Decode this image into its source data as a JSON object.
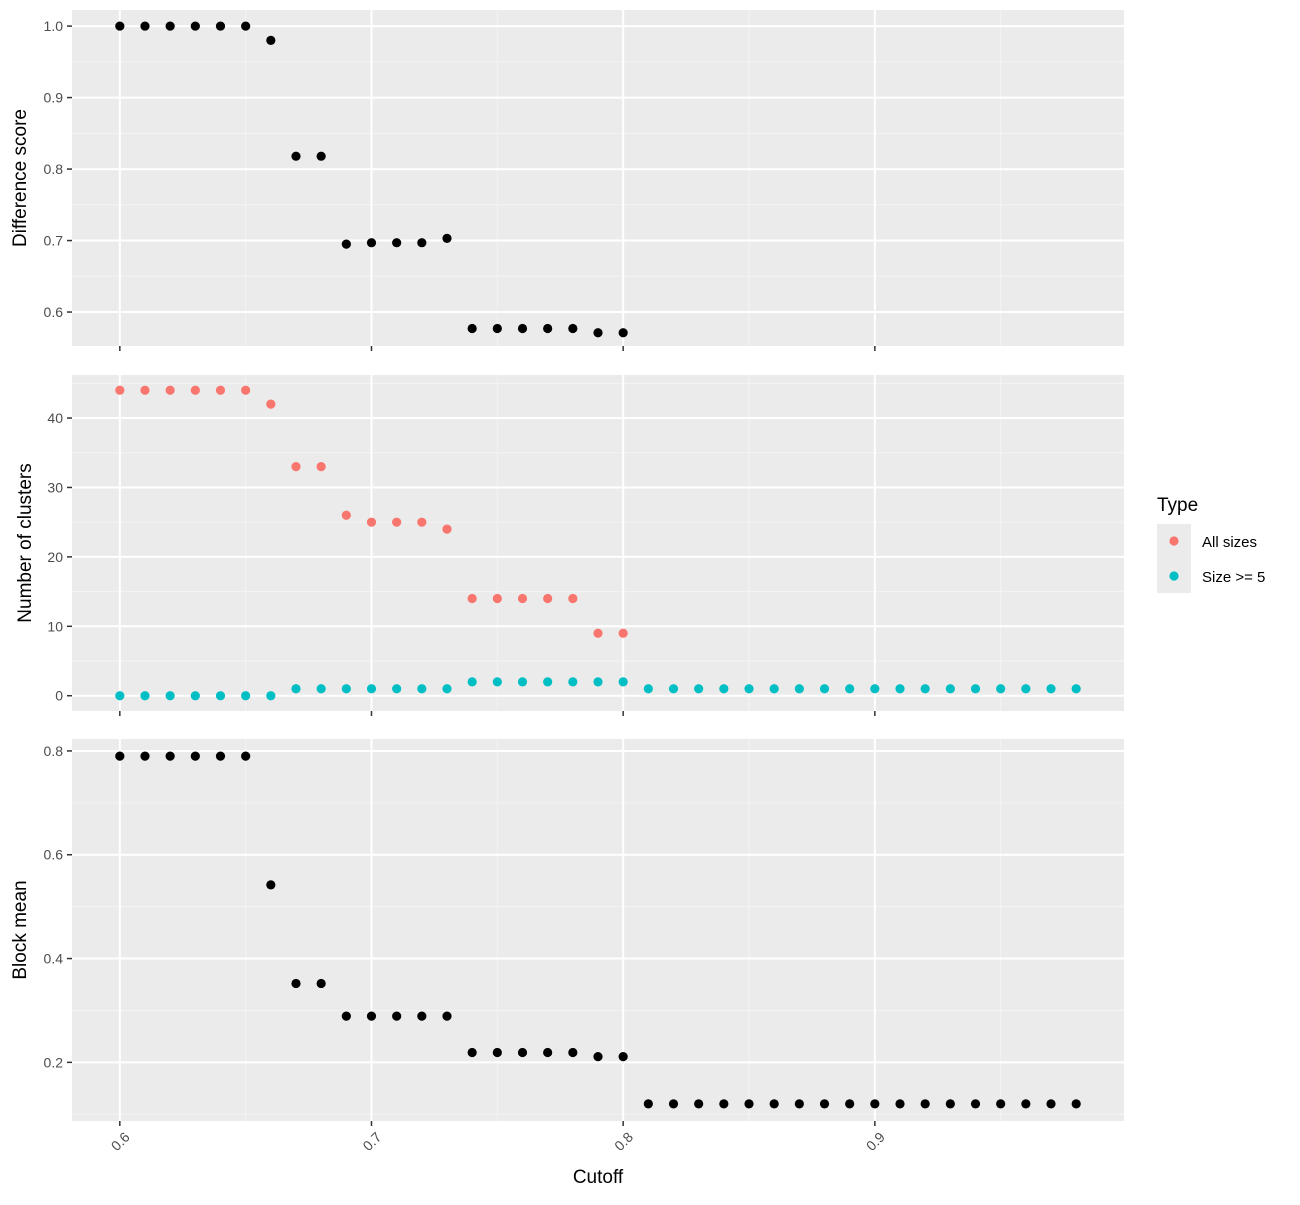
{
  "chart_data": [
    {
      "type": "scatter",
      "panel": "top",
      "xlabel": "",
      "ylabel": "Difference score",
      "xlim": [
        0.581,
        0.999
      ],
      "ylim": [
        0.5525,
        1.0225
      ],
      "yticks": [
        0.6,
        0.7,
        0.8,
        0.9,
        1.0
      ],
      "yticklabels": [
        "0.6",
        "0.7",
        "0.8",
        "0.9",
        "1.0"
      ],
      "xticks": [
        0.6,
        0.7,
        0.8,
        0.9
      ],
      "grid": true,
      "series": [
        {
          "color": "#000000",
          "x": [
            0.6,
            0.61,
            0.62,
            0.63,
            0.64,
            0.65,
            0.66,
            0.67,
            0.68,
            0.69,
            0.7,
            0.71,
            0.72,
            0.73,
            0.74,
            0.75,
            0.76,
            0.77,
            0.78,
            0.79,
            0.8
          ],
          "y": [
            1.0,
            1.0,
            1.0,
            1.0,
            1.0,
            1.0,
            0.98,
            0.818,
            0.818,
            0.695,
            0.697,
            0.697,
            0.697,
            0.703,
            0.577,
            0.577,
            0.577,
            0.577,
            0.577,
            0.571,
            0.571
          ]
        }
      ]
    },
    {
      "type": "scatter",
      "panel": "middle",
      "xlabel": "",
      "ylabel": "Number of clusters",
      "xlim": [
        0.581,
        0.999
      ],
      "ylim": [
        -2.2,
        46.2
      ],
      "yticks": [
        0,
        10,
        20,
        30,
        40
      ],
      "yticklabels": [
        "0",
        "10",
        "20",
        "30",
        "40"
      ],
      "xticks": [
        0.6,
        0.7,
        0.8,
        0.9
      ],
      "grid": true,
      "legend": {
        "title": "Type",
        "position": "right",
        "entries": [
          "All sizes",
          "Size >= 5"
        ]
      },
      "series": [
        {
          "name": "All sizes",
          "color": "#F8766D",
          "x": [
            0.6,
            0.61,
            0.62,
            0.63,
            0.64,
            0.65,
            0.66,
            0.67,
            0.68,
            0.69,
            0.7,
            0.71,
            0.72,
            0.73,
            0.74,
            0.75,
            0.76,
            0.77,
            0.78,
            0.79,
            0.8
          ],
          "y": [
            44,
            44,
            44,
            44,
            44,
            44,
            42,
            33,
            33,
            26,
            25,
            25,
            25,
            24,
            14,
            14,
            14,
            14,
            14,
            9,
            9
          ]
        },
        {
          "name": "Size >= 5",
          "color": "#00BFC4",
          "x": [
            0.6,
            0.61,
            0.62,
            0.63,
            0.64,
            0.65,
            0.66,
            0.67,
            0.68,
            0.69,
            0.7,
            0.71,
            0.72,
            0.73,
            0.74,
            0.75,
            0.76,
            0.77,
            0.78,
            0.79,
            0.8,
            0.81,
            0.82,
            0.83,
            0.84,
            0.85,
            0.86,
            0.87,
            0.88,
            0.89,
            0.9,
            0.91,
            0.92,
            0.93,
            0.94,
            0.95,
            0.96,
            0.97,
            0.98
          ],
          "y": [
            0,
            0,
            0,
            0,
            0,
            0,
            0,
            1,
            1,
            1,
            1,
            1,
            1,
            1,
            2,
            2,
            2,
            2,
            2,
            2,
            2,
            1,
            1,
            1,
            1,
            1,
            1,
            1,
            1,
            1,
            1,
            1,
            1,
            1,
            1,
            1,
            1,
            1,
            1
          ]
        }
      ]
    },
    {
      "type": "scatter",
      "panel": "bottom",
      "xlabel": "Cutoff",
      "ylabel": "Block mean",
      "xlim": [
        0.581,
        0.999
      ],
      "ylim": [
        0.087,
        0.823
      ],
      "yticks": [
        0.2,
        0.4,
        0.6,
        0.8
      ],
      "yticklabels": [
        "0.2",
        "0.4",
        "0.6",
        "0.8"
      ],
      "xticks": [
        0.6,
        0.7,
        0.8,
        0.9
      ],
      "xticklabels": [
        "0.6",
        "0.7",
        "0.8",
        "0.9"
      ],
      "grid": true,
      "series": [
        {
          "color": "#000000",
          "x": [
            0.6,
            0.61,
            0.62,
            0.63,
            0.64,
            0.65,
            0.66,
            0.67,
            0.68,
            0.69,
            0.7,
            0.71,
            0.72,
            0.73,
            0.74,
            0.75,
            0.76,
            0.77,
            0.78,
            0.79,
            0.8,
            0.81,
            0.82,
            0.83,
            0.84,
            0.85,
            0.86,
            0.87,
            0.88,
            0.89,
            0.9,
            0.91,
            0.92,
            0.93,
            0.94,
            0.95,
            0.96,
            0.97,
            0.98
          ],
          "y": [
            0.79,
            0.79,
            0.79,
            0.79,
            0.79,
            0.79,
            0.542,
            0.352,
            0.352,
            0.289,
            0.289,
            0.289,
            0.289,
            0.289,
            0.219,
            0.219,
            0.219,
            0.219,
            0.219,
            0.211,
            0.211,
            0.12,
            0.12,
            0.12,
            0.12,
            0.12,
            0.12,
            0.12,
            0.12,
            0.12,
            0.12,
            0.12,
            0.12,
            0.12,
            0.12,
            0.12,
            0.12,
            0.12,
            0.12
          ]
        }
      ]
    }
  ]
}
